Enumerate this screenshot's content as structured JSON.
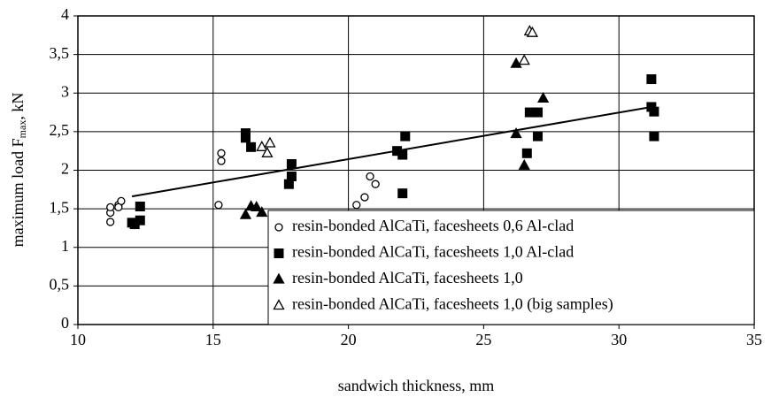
{
  "chart_data": {
    "type": "scatter",
    "x_label": "sandwich thickness, mm",
    "y_label": [
      "maximum load F",
      "max",
      ", kN"
    ],
    "xlim": [
      10,
      35
    ],
    "xticks": [
      10,
      15,
      20,
      25,
      30,
      35
    ],
    "ylim": [
      0,
      4
    ],
    "yticks": [
      0,
      {
        "value": 0.5,
        "label": "0,5"
      },
      1,
      {
        "value": 1.5,
        "label": "1,5"
      },
      2,
      {
        "value": 2.5,
        "label": "2,5"
      },
      3,
      {
        "value": 3.5,
        "label": "3,5"
      },
      4
    ],
    "grid": true,
    "legend": "lower right",
    "series": [
      {
        "name": "resin-bonded AlCaTi, facesheets 0,6 Al-clad",
        "marker": "circle-open",
        "color": "#000000",
        "x": [
          11.2,
          11.2,
          11.2,
          11.5,
          11.6,
          11.5,
          15.3,
          15.3,
          15.2,
          20.3,
          20.6,
          20.8,
          21.0
        ],
        "values": [
          1.33,
          1.45,
          1.52,
          1.55,
          1.6,
          1.52,
          2.22,
          2.12,
          1.55,
          1.55,
          1.65,
          1.92,
          1.82
        ]
      },
      {
        "name": "resin-bonded AlCaTi, facesheets 1,0 Al-clad",
        "marker": "square",
        "color": "#000000",
        "x": [
          12.0,
          12.1,
          12.3,
          12.3,
          16.2,
          16.2,
          16.4,
          17.8,
          17.9,
          17.9,
          21.8,
          22.0,
          22.1,
          22.0,
          26.6,
          26.7,
          27.0,
          27.0,
          31.2,
          31.2,
          31.3,
          31.3
        ],
        "values": [
          1.32,
          1.3,
          1.35,
          1.53,
          2.48,
          2.42,
          2.3,
          1.82,
          1.92,
          2.08,
          2.25,
          2.2,
          2.44,
          1.7,
          2.22,
          2.75,
          2.75,
          2.44,
          3.18,
          2.82,
          2.76,
          2.44
        ]
      },
      {
        "name": "resin-bonded AlCaTi, facesheets 1,0",
        "marker": "triangle",
        "color": "#000000",
        "x": [
          16.2,
          16.4,
          16.6,
          16.8,
          26.2,
          26.5,
          27.2,
          26.2
        ],
        "values": [
          1.42,
          1.53,
          1.52,
          1.45,
          2.47,
          2.06,
          2.93,
          3.38
        ]
      },
      {
        "name": "resin-bonded AlCaTi, facesheets 1,0 (big samples)",
        "marker": "triangle-open",
        "color": "#000000",
        "x": [
          16.8,
          17.0,
          17.1,
          26.5,
          26.7,
          26.8
        ],
        "values": [
          2.3,
          2.22,
          2.35,
          3.42,
          3.8,
          3.78
        ]
      }
    ],
    "trend_line": {
      "x": [
        12,
        31.2
      ],
      "values": [
        1.66,
        2.82
      ]
    }
  }
}
